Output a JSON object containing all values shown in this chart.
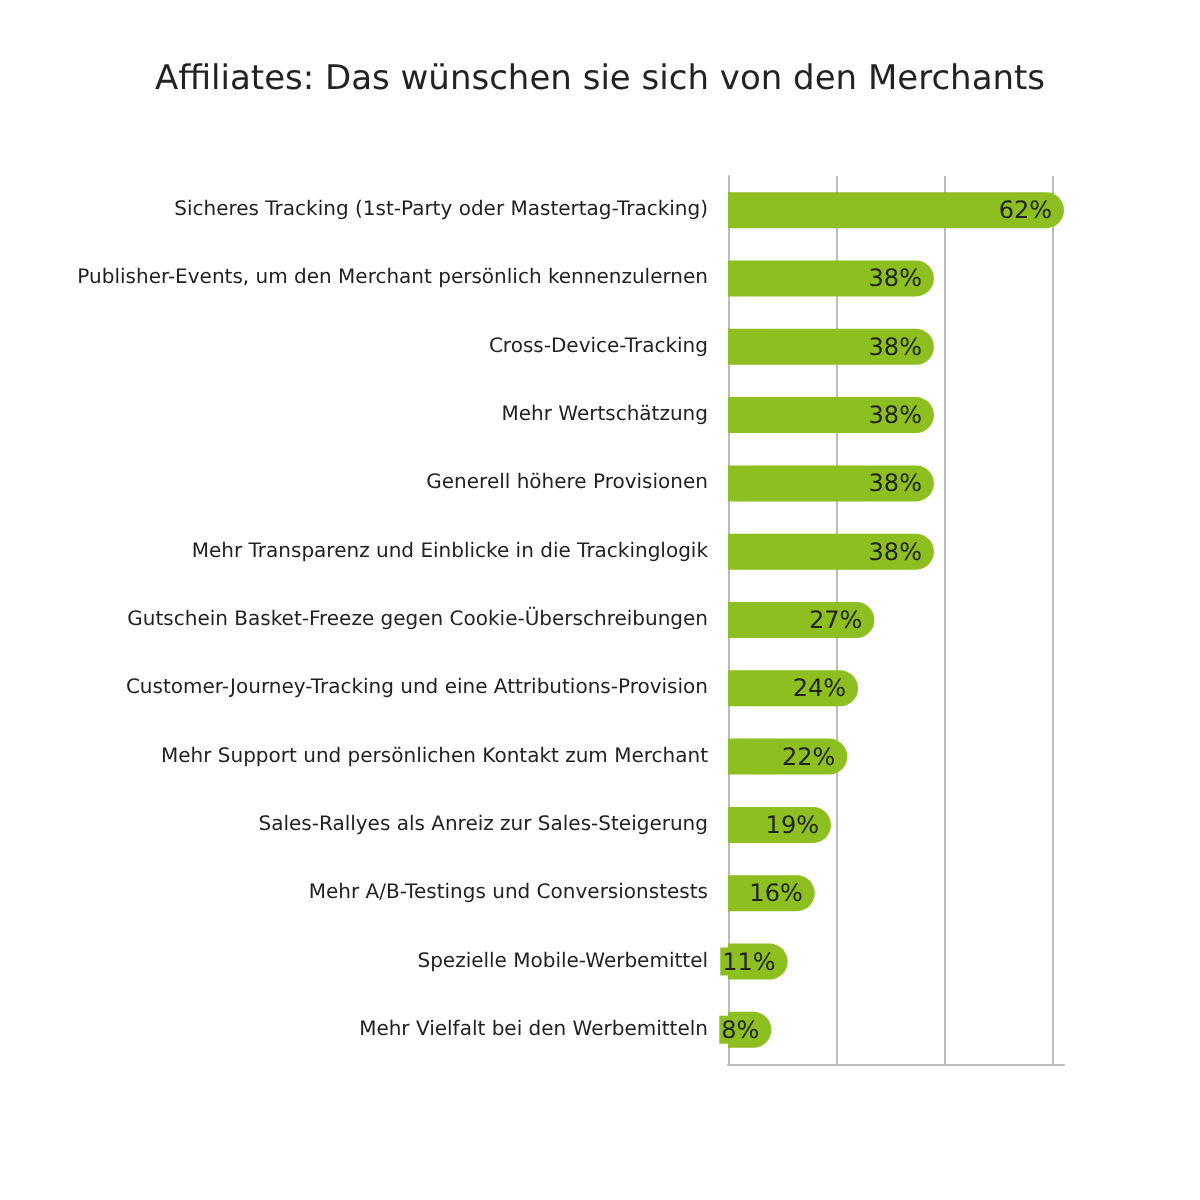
{
  "chart_data": {
    "type": "bar",
    "orientation": "horizontal",
    "title": "Affiliates: Das wünschen sie sich von den Merchants",
    "categories": [
      "Sicheres Tracking (1st-Party oder Mastertag-Tracking)",
      "Publisher-Events, um den Merchant persönlich kennenzulernen",
      "Cross-Device-Tracking",
      "Mehr Wertschätzung",
      "Generell höhere Provisionen",
      "Mehr Transparenz und Einblicke in die Trackinglogik",
      "Gutschein Basket-Freeze gegen Cookie-Überschreibungen",
      "Customer-Journey-Tracking und eine Attributions-Provision",
      "Mehr Support und persönlichen Kontakt zum Merchant",
      "Sales-Rallyes als Anreiz zur Sales-Steigerung",
      "Mehr A/B-Testings und Conversionstests",
      "Spezielle Mobile-Werbemittel",
      "Mehr Vielfalt bei den Werbemitteln"
    ],
    "values": [
      62,
      38,
      38,
      38,
      38,
      38,
      27,
      24,
      22,
      19,
      16,
      11,
      8
    ],
    "value_labels": [
      "62%",
      "38%",
      "38%",
      "38%",
      "38%",
      "38%",
      "27%",
      "24%",
      "22%",
      "19%",
      "16%",
      "11%",
      "8%"
    ],
    "color": "#8cbf1f",
    "xlim": [
      0,
      62
    ],
    "xticks": [
      {
        "value": 0,
        "label": null
      },
      {
        "value": 20,
        "label": null
      },
      {
        "value": 40,
        "label": null
      },
      {
        "value": 60,
        "label": null
      }
    ],
    "grid": "x",
    "tick_labels": false
  }
}
